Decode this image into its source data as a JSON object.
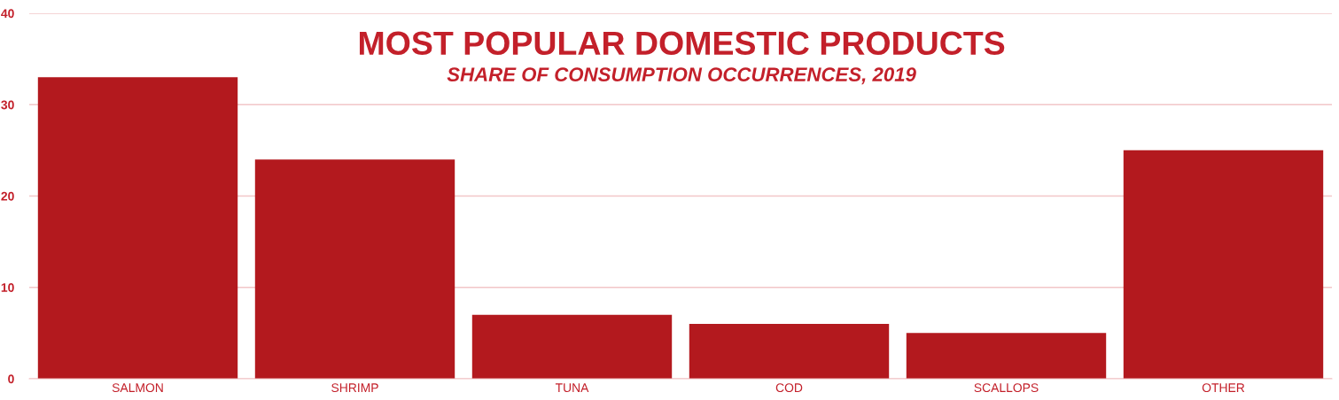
{
  "chart_data": {
    "type": "bar",
    "title": "MOST POPULAR DOMESTIC PRODUCTS",
    "subtitle": "SHARE OF CONSUMPTION OCCURRENCES, 2019",
    "categories": [
      "SALMON",
      "SHRIMP",
      "TUNA",
      "COD",
      "SCALLOPS",
      "OTHER"
    ],
    "values": [
      33,
      24,
      7,
      6,
      5,
      25
    ],
    "color": "#b3191e",
    "ylim": [
      0,
      40
    ],
    "yticks": [
      0,
      10,
      20,
      30,
      40
    ],
    "grid": "y"
  }
}
